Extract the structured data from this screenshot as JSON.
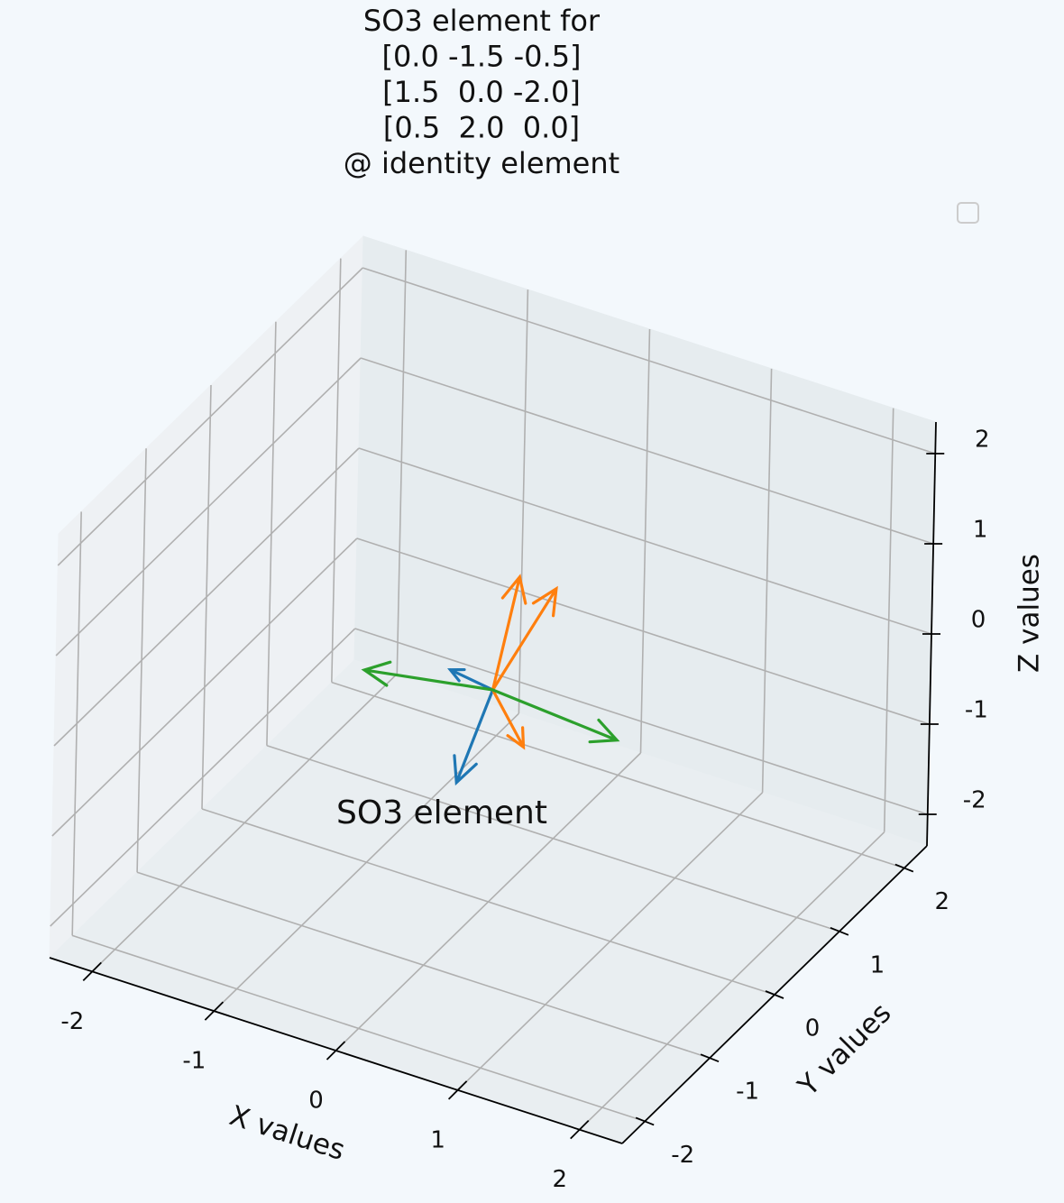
{
  "chart_data": {
    "type": "quiver3d",
    "title": [
      "SO3 element for",
      "[0.0 -1.5 -0.5]",
      "[1.5  0.0 -2.0]",
      "[0.5  2.0  0.0]",
      "@ identity element"
    ],
    "annotation": "SO3 element",
    "xlabel": "X values",
    "ylabel": "Y values",
    "zlabel": "Z values",
    "xlim": [
      -2.35,
      2.35
    ],
    "ylim": [
      -2.35,
      2.35
    ],
    "zlim": [
      -2.35,
      2.35
    ],
    "xticks": [
      -2,
      -1,
      0,
      1,
      2
    ],
    "yticks": [
      -2,
      -1,
      0,
      1,
      2
    ],
    "zticks": [
      -2,
      -1,
      0,
      1,
      2
    ],
    "grid": true,
    "origin": [
      0,
      0,
      0
    ],
    "series": [
      {
        "color": "#1f77b4",
        "u": [
          -0.28,
          -0.35
        ],
        "v": [
          0,
          0
        ],
        "w": [
          -1.15,
          0.07
        ]
      },
      {
        "color": "#ff7f0e",
        "u": [
          0.5,
          0.2,
          0.26
        ],
        "v": [
          0,
          0,
          0
        ],
        "w": [
          1.34,
          1.34,
          -0.52
        ]
      },
      {
        "color": "#2ca02c",
        "u": [
          -1.05,
          1.02
        ],
        "v": [
          0,
          0
        ],
        "w": [
          -0.24,
          -0.11
        ]
      }
    ]
  }
}
